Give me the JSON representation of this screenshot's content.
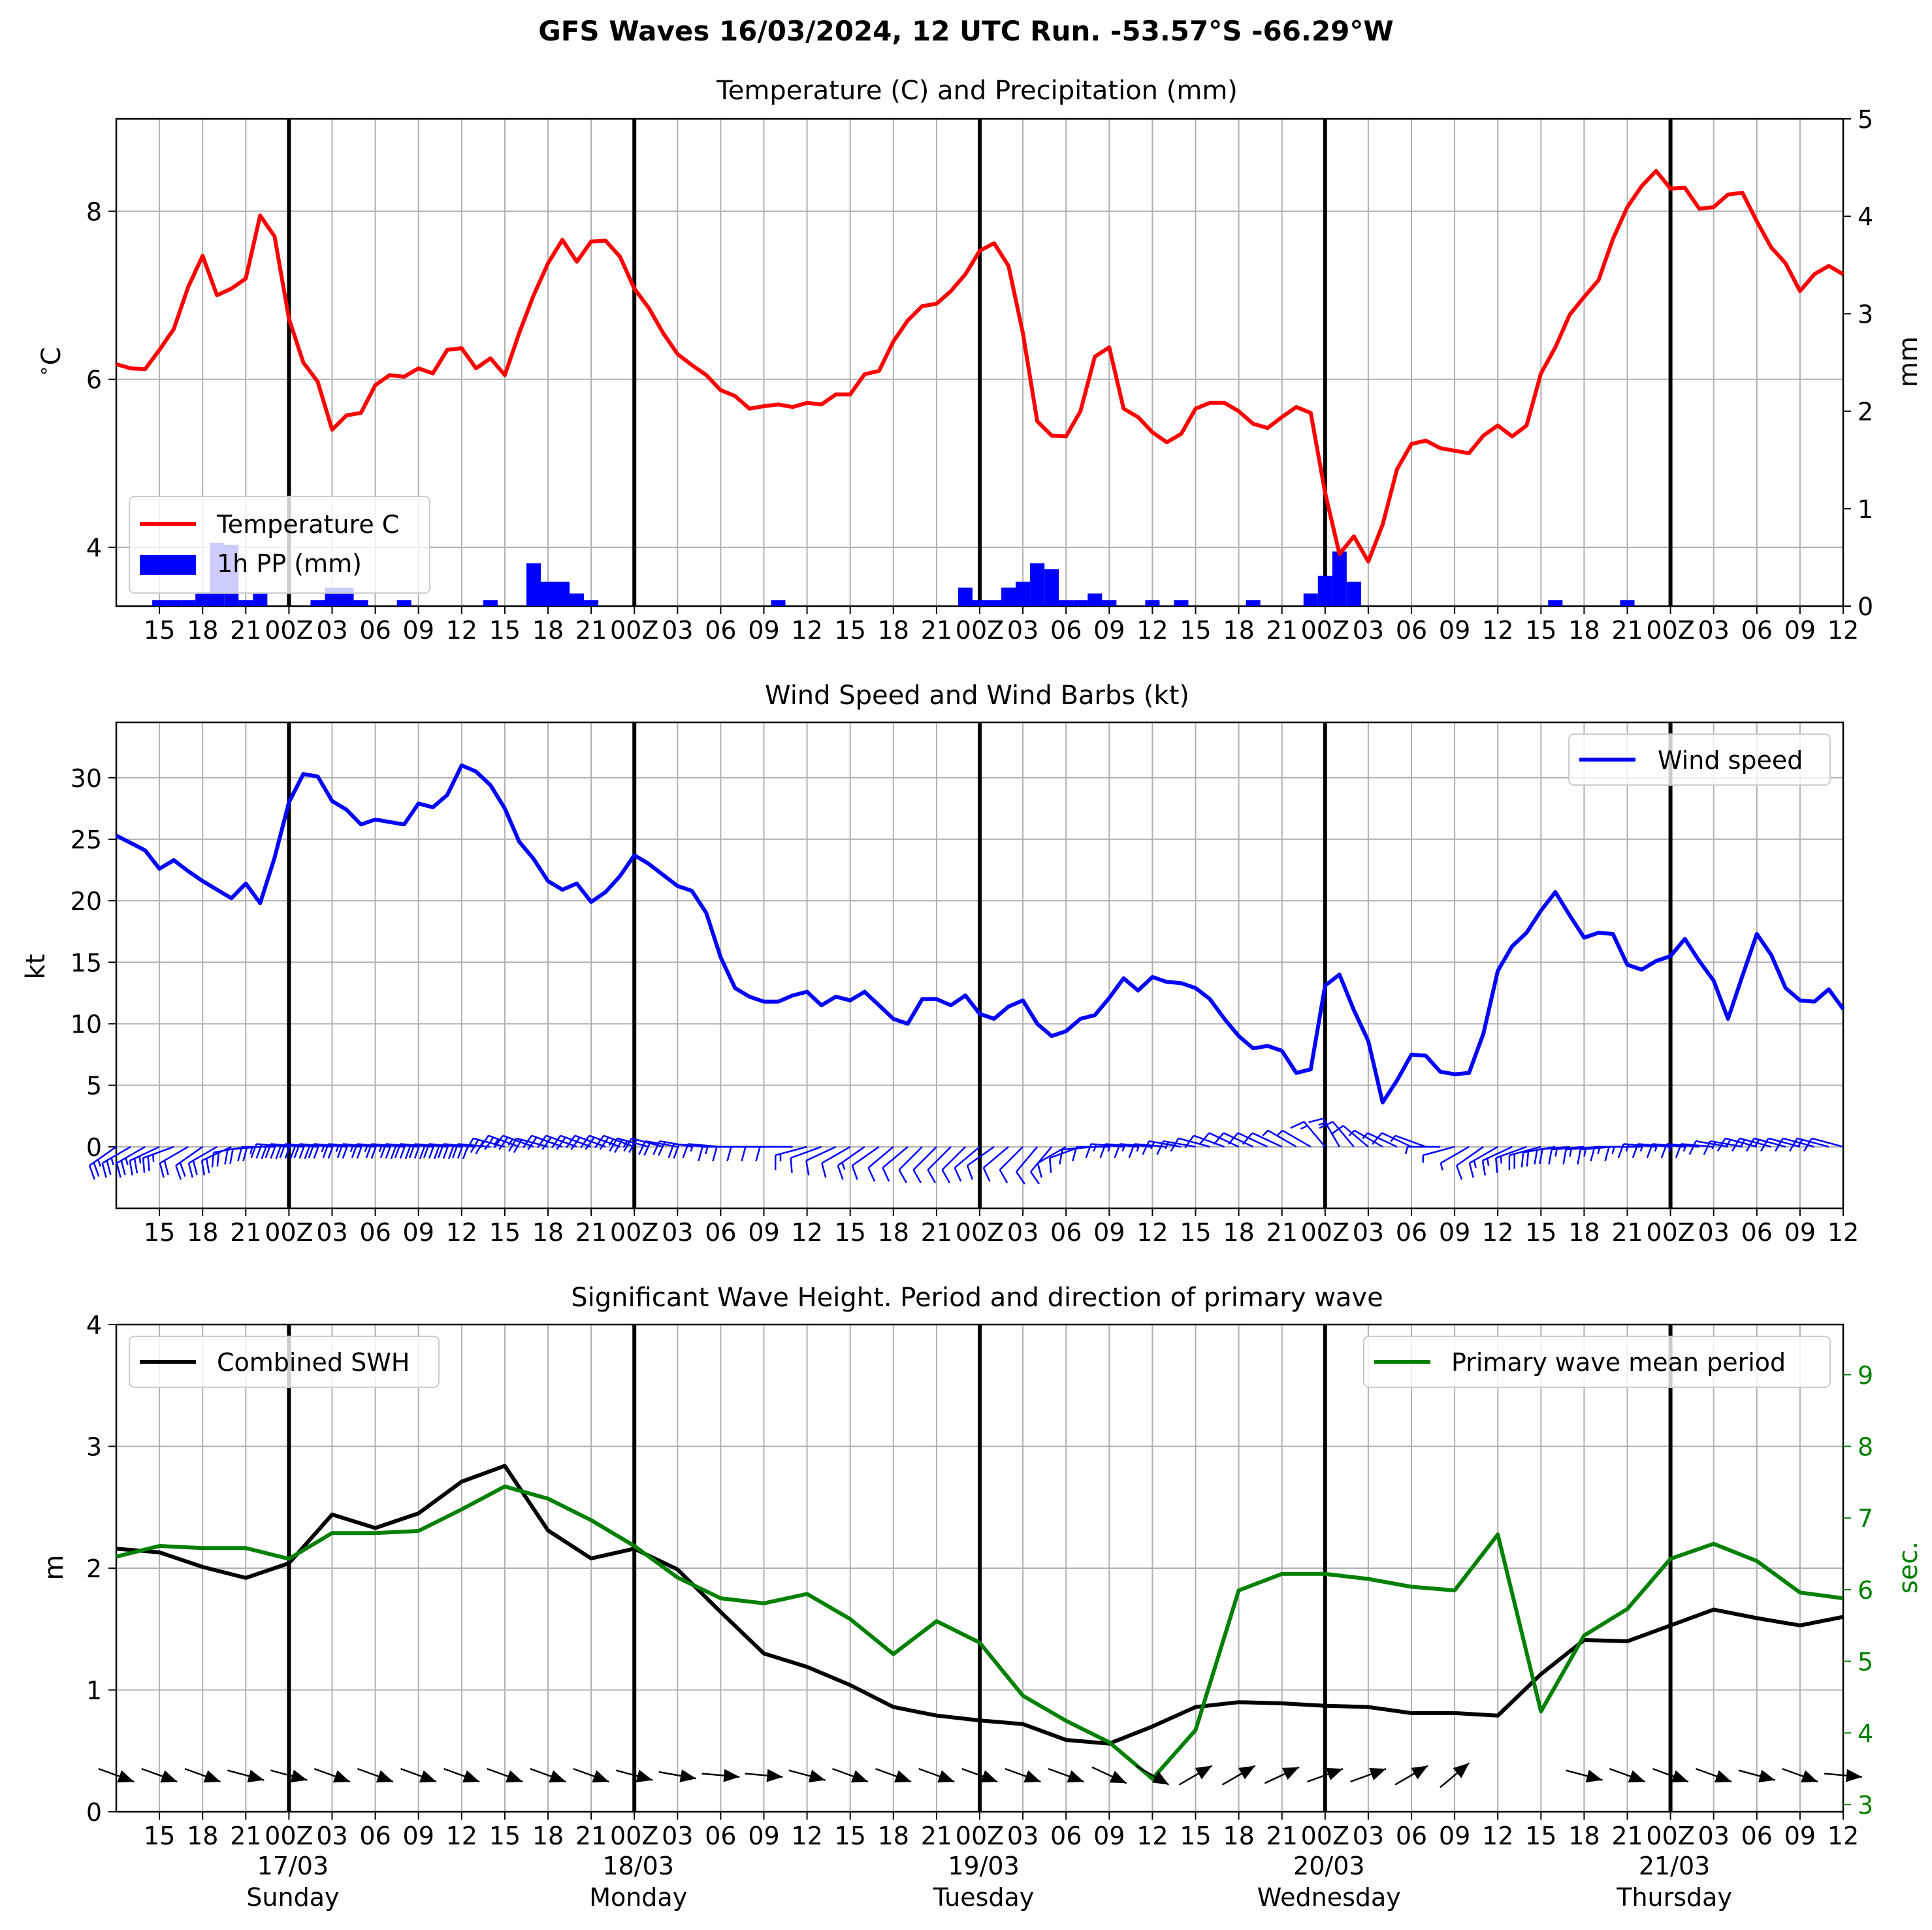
{
  "suptitle": "GFS Waves 16/03/2024, 12 UTC Run. -53.57°S -66.29°W",
  "colors": {
    "temp": "#ff0000",
    "precip": "#0000ff",
    "wind": "#0000ff",
    "swh": "#000000",
    "period": "#008000",
    "grid": "#b0b0b0"
  },
  "time_axis": {
    "start": "2024-03-16 12:00",
    "step_hours": 3,
    "tick_labels": [
      "15",
      "18",
      "21",
      "00Z",
      "03",
      "06",
      "09",
      "12",
      "15",
      "18",
      "21",
      "00Z",
      "03",
      "06",
      "09",
      "12",
      "15",
      "18",
      "21",
      "00Z",
      "03",
      "06",
      "09",
      "12",
      "15",
      "18",
      "21",
      "00Z",
      "03",
      "06",
      "09",
      "12",
      "15",
      "18",
      "21",
      "00Z",
      "03",
      "06",
      "09",
      "12"
    ],
    "day_labels": [
      {
        "date": "17/03",
        "weekday": "Sunday"
      },
      {
        "date": "18/03",
        "weekday": "Monday"
      },
      {
        "date": "19/03",
        "weekday": "Tuesday"
      },
      {
        "date": "20/03",
        "weekday": "Wednesday"
      },
      {
        "date": "21/03",
        "weekday": "Thursday"
      }
    ]
  },
  "chart_data": [
    {
      "type": "line",
      "title": "Temperature (C) and Precipitation (mm)",
      "ylabel": "$^\\circ$C",
      "ylabel_right": "mm",
      "ylim": [
        3.3,
        9.1
      ],
      "ylim_right": [
        0,
        5
      ],
      "yticks": [
        4,
        6,
        8
      ],
      "yticks_right": [
        0,
        1,
        2,
        3,
        4,
        5
      ],
      "legend": {
        "position": "lower-left",
        "entries": [
          "Temperature C",
          "1h PP (mm)"
        ]
      },
      "series": [
        {
          "name": "Temperature C",
          "x_hours_step": 1,
          "values": [
            6.18,
            6.13,
            6.12,
            6.35,
            6.6,
            7.1,
            7.47,
            7.0,
            7.08,
            7.2,
            7.95,
            7.7,
            6.72,
            6.2,
            5.97,
            5.4,
            5.57,
            5.6,
            5.93,
            6.05,
            6.03,
            6.13,
            6.07,
            6.35,
            6.37,
            6.13,
            6.25,
            6.05,
            6.55,
            7.0,
            7.38,
            7.66,
            7.4,
            7.64,
            7.65,
            7.46,
            7.08,
            6.85,
            6.55,
            6.3,
            6.17,
            6.05,
            5.87,
            5.8,
            5.65,
            5.68,
            5.7,
            5.67,
            5.72,
            5.7,
            5.82,
            5.82,
            6.06,
            6.1,
            6.45,
            6.7,
            6.87,
            6.9,
            7.05,
            7.25,
            7.53,
            7.62,
            7.35,
            6.55,
            5.5,
            5.33,
            5.32,
            5.62,
            6.27,
            6.38,
            5.65,
            5.55,
            5.37,
            5.25,
            5.35,
            5.65,
            5.72,
            5.72,
            5.62,
            5.47,
            5.42,
            5.55,
            5.67,
            5.6,
            4.65,
            3.92,
            4.13,
            3.83,
            4.27,
            4.93,
            5.23,
            5.27,
            5.18,
            5.15,
            5.12,
            5.33,
            5.45,
            5.32,
            5.45,
            6.07,
            6.38,
            6.77,
            6.98,
            7.18,
            7.67,
            8.05,
            8.3,
            8.48,
            8.27,
            8.28,
            8.03,
            8.05,
            8.2,
            8.22,
            7.88,
            7.57,
            7.38,
            7.05,
            7.25,
            7.35,
            7.25
          ]
        }
      ],
      "bars": {
        "name": "1h PP (mm)",
        "x_hours_step": 1,
        "values": [
          0,
          0,
          0,
          0.06,
          0.06,
          0.06,
          0.13,
          0.65,
          0.63,
          0.06,
          0.13,
          0,
          0,
          0,
          0.06,
          0.19,
          0.19,
          0.06,
          0,
          0,
          0.06,
          0,
          0,
          0,
          0,
          0,
          0.06,
          0,
          0,
          0.44,
          0.25,
          0.25,
          0.13,
          0.06,
          0,
          0,
          0,
          0,
          0,
          0,
          0,
          0,
          0,
          0,
          0,
          0,
          0.06,
          0,
          0,
          0,
          0,
          0,
          0,
          0,
          0,
          0,
          0,
          0,
          0,
          0.19,
          0.06,
          0.06,
          0.19,
          0.25,
          0.44,
          0.38,
          0.06,
          0.06,
          0.13,
          0.06,
          0,
          0,
          0.06,
          0,
          0.06,
          0,
          0,
          0,
          0,
          0.06,
          0,
          0,
          0,
          0.13,
          0.31,
          0.56,
          0.25,
          0,
          0,
          0,
          0,
          0,
          0,
          0,
          0,
          0,
          0,
          0,
          0,
          0,
          0.06,
          0,
          0,
          0,
          0,
          0.06,
          0,
          0,
          0,
          0,
          0,
          0,
          0,
          0,
          0,
          0,
          0,
          0,
          0,
          0,
          0,
          0,
          0
        ]
      }
    },
    {
      "type": "line",
      "title": "Wind Speed and Wind Barbs (kt)",
      "ylabel": "kt",
      "ylim": [
        -5,
        34.5
      ],
      "yticks": [
        0,
        5,
        10,
        15,
        20,
        25,
        30
      ],
      "legend": {
        "position": "upper-right",
        "entries": [
          "Wind speed"
        ]
      },
      "series": [
        {
          "name": "Wind speed",
          "x_hours_step": 1,
          "values": [
            25.3,
            24.7,
            24.1,
            22.6,
            23.3,
            22.4,
            21.6,
            20.9,
            20.2,
            21.4,
            19.8,
            23.5,
            28.0,
            30.3,
            30.1,
            28.1,
            27.4,
            26.2,
            26.6,
            26.4,
            26.2,
            27.9,
            27.6,
            28.6,
            31.0,
            30.5,
            29.4,
            27.5,
            24.8,
            23.4,
            21.6,
            20.9,
            21.4,
            19.9,
            20.7,
            22.0,
            23.7,
            23.0,
            22.1,
            21.2,
            20.8,
            19.0,
            15.4,
            12.9,
            12.2,
            11.8,
            11.8,
            12.3,
            12.6,
            11.5,
            12.2,
            11.9,
            12.6,
            11.5,
            10.4,
            10.0,
            12.0,
            12.0,
            11.5,
            12.3,
            10.8,
            10.4,
            11.4,
            11.9,
            10.0,
            9.0,
            9.4,
            10.4,
            10.7,
            12.1,
            13.7,
            12.7,
            13.8,
            13.4,
            13.3,
            12.9,
            12.0,
            10.4,
            9.0,
            8.0,
            8.2,
            7.8,
            6.0,
            6.3,
            13.1,
            14.0,
            11.1,
            8.6,
            3.6,
            5.4,
            7.5,
            7.4,
            6.1,
            5.9,
            6.0,
            9.2,
            14.3,
            16.3,
            17.4,
            19.2,
            20.7,
            18.8,
            17.0,
            17.4,
            17.3,
            14.8,
            14.4,
            15.1,
            15.5,
            16.9,
            15.1,
            13.5,
            10.4,
            13.9,
            17.3,
            15.6,
            12.9,
            11.9,
            11.8,
            12.8,
            11.2
          ]
        }
      ],
      "barbs": {
        "x_hours_step": 1,
        "direction_deg": [
          305,
          300,
          300,
          295,
          290,
          300,
          305,
          300,
          295,
          280,
          275,
          270,
          265,
          265,
          265,
          265,
          265,
          265,
          265,
          265,
          265,
          265,
          265,
          265,
          265,
          265,
          265,
          255,
          250,
          250,
          255,
          250,
          250,
          250,
          250,
          250,
          250,
          255,
          255,
          260,
          260,
          265,
          265,
          270,
          270,
          270,
          270,
          270,
          285,
          290,
          295,
          300,
          305,
          305,
          310,
          310,
          315,
          315,
          315,
          315,
          310,
          305,
          310,
          315,
          320,
          320,
          300,
          290,
          275,
          270,
          265,
          265,
          265,
          265,
          260,
          260,
          255,
          250,
          245,
          245,
          245,
          245,
          240,
          240,
          220,
          210,
          220,
          230,
          240,
          245,
          245,
          250,
          270,
          285,
          300,
          305,
          300,
          295,
          290,
          285,
          280,
          275,
          275,
          275,
          275,
          270,
          270,
          265,
          265,
          265,
          265,
          265,
          260,
          260,
          255,
          255,
          255,
          255,
          255,
          255,
          255
        ]
      }
    },
    {
      "type": "line",
      "title": "Significant Wave Height. Period and direction of primary wave",
      "ylabel": "m",
      "ylabel_right": "sec.",
      "ylim": [
        0,
        4
      ],
      "ylim_right": [
        2.9,
        9.7
      ],
      "yticks": [
        0,
        1,
        2,
        3,
        4
      ],
      "yticks_right": [
        3,
        4,
        5,
        6,
        7,
        8,
        9
      ],
      "legend_left": {
        "position": "upper-left",
        "entries": [
          "Combined SWH"
        ]
      },
      "legend_right": {
        "position": "upper-right",
        "entries": [
          "Primary wave mean period"
        ]
      },
      "series": [
        {
          "name": "Combined SWH",
          "axis": "left",
          "x_hours_step": 3,
          "values": [
            2.16,
            2.13,
            2.01,
            1.92,
            2.04,
            2.44,
            2.33,
            2.45,
            2.71,
            2.84,
            2.31,
            2.08,
            2.16,
            1.99,
            1.64,
            1.3,
            1.19,
            1.04,
            0.86,
            0.79,
            0.75,
            0.72,
            0.59,
            0.56,
            0.7,
            0.86,
            0.9,
            0.89,
            0.87,
            0.86,
            0.81,
            0.81,
            0.79,
            1.13,
            1.41,
            1.4,
            1.53,
            1.66,
            1.59,
            1.53,
            1.6
          ]
        },
        {
          "name": "Primary wave mean period",
          "axis": "right",
          "x_hours_step": 3,
          "values": [
            6.46,
            6.61,
            6.58,
            6.58,
            6.43,
            6.79,
            6.79,
            6.82,
            7.12,
            7.44,
            7.27,
            6.97,
            6.61,
            6.17,
            5.88,
            5.81,
            5.94,
            5.59,
            5.1,
            5.56,
            5.26,
            4.52,
            4.17,
            3.87,
            3.36,
            4.04,
            5.99,
            6.22,
            6.22,
            6.15,
            6.04,
            5.99,
            6.77,
            4.3,
            5.36,
            5.73,
            6.43,
            6.64,
            6.4,
            5.96,
            5.88
          ]
        }
      ],
      "direction_arrows": {
        "x_hours_step": 3,
        "direction_deg": [
          290,
          290,
          290,
          285,
          285,
          290,
          290,
          290,
          290,
          290,
          290,
          290,
          285,
          280,
          275,
          275,
          285,
          290,
          290,
          290,
          290,
          290,
          290,
          295,
          300,
          240,
          240,
          245,
          250,
          250,
          240,
          230,
          null,
          null,
          285,
          290,
          290,
          290,
          285,
          290,
          275
        ]
      }
    }
  ]
}
